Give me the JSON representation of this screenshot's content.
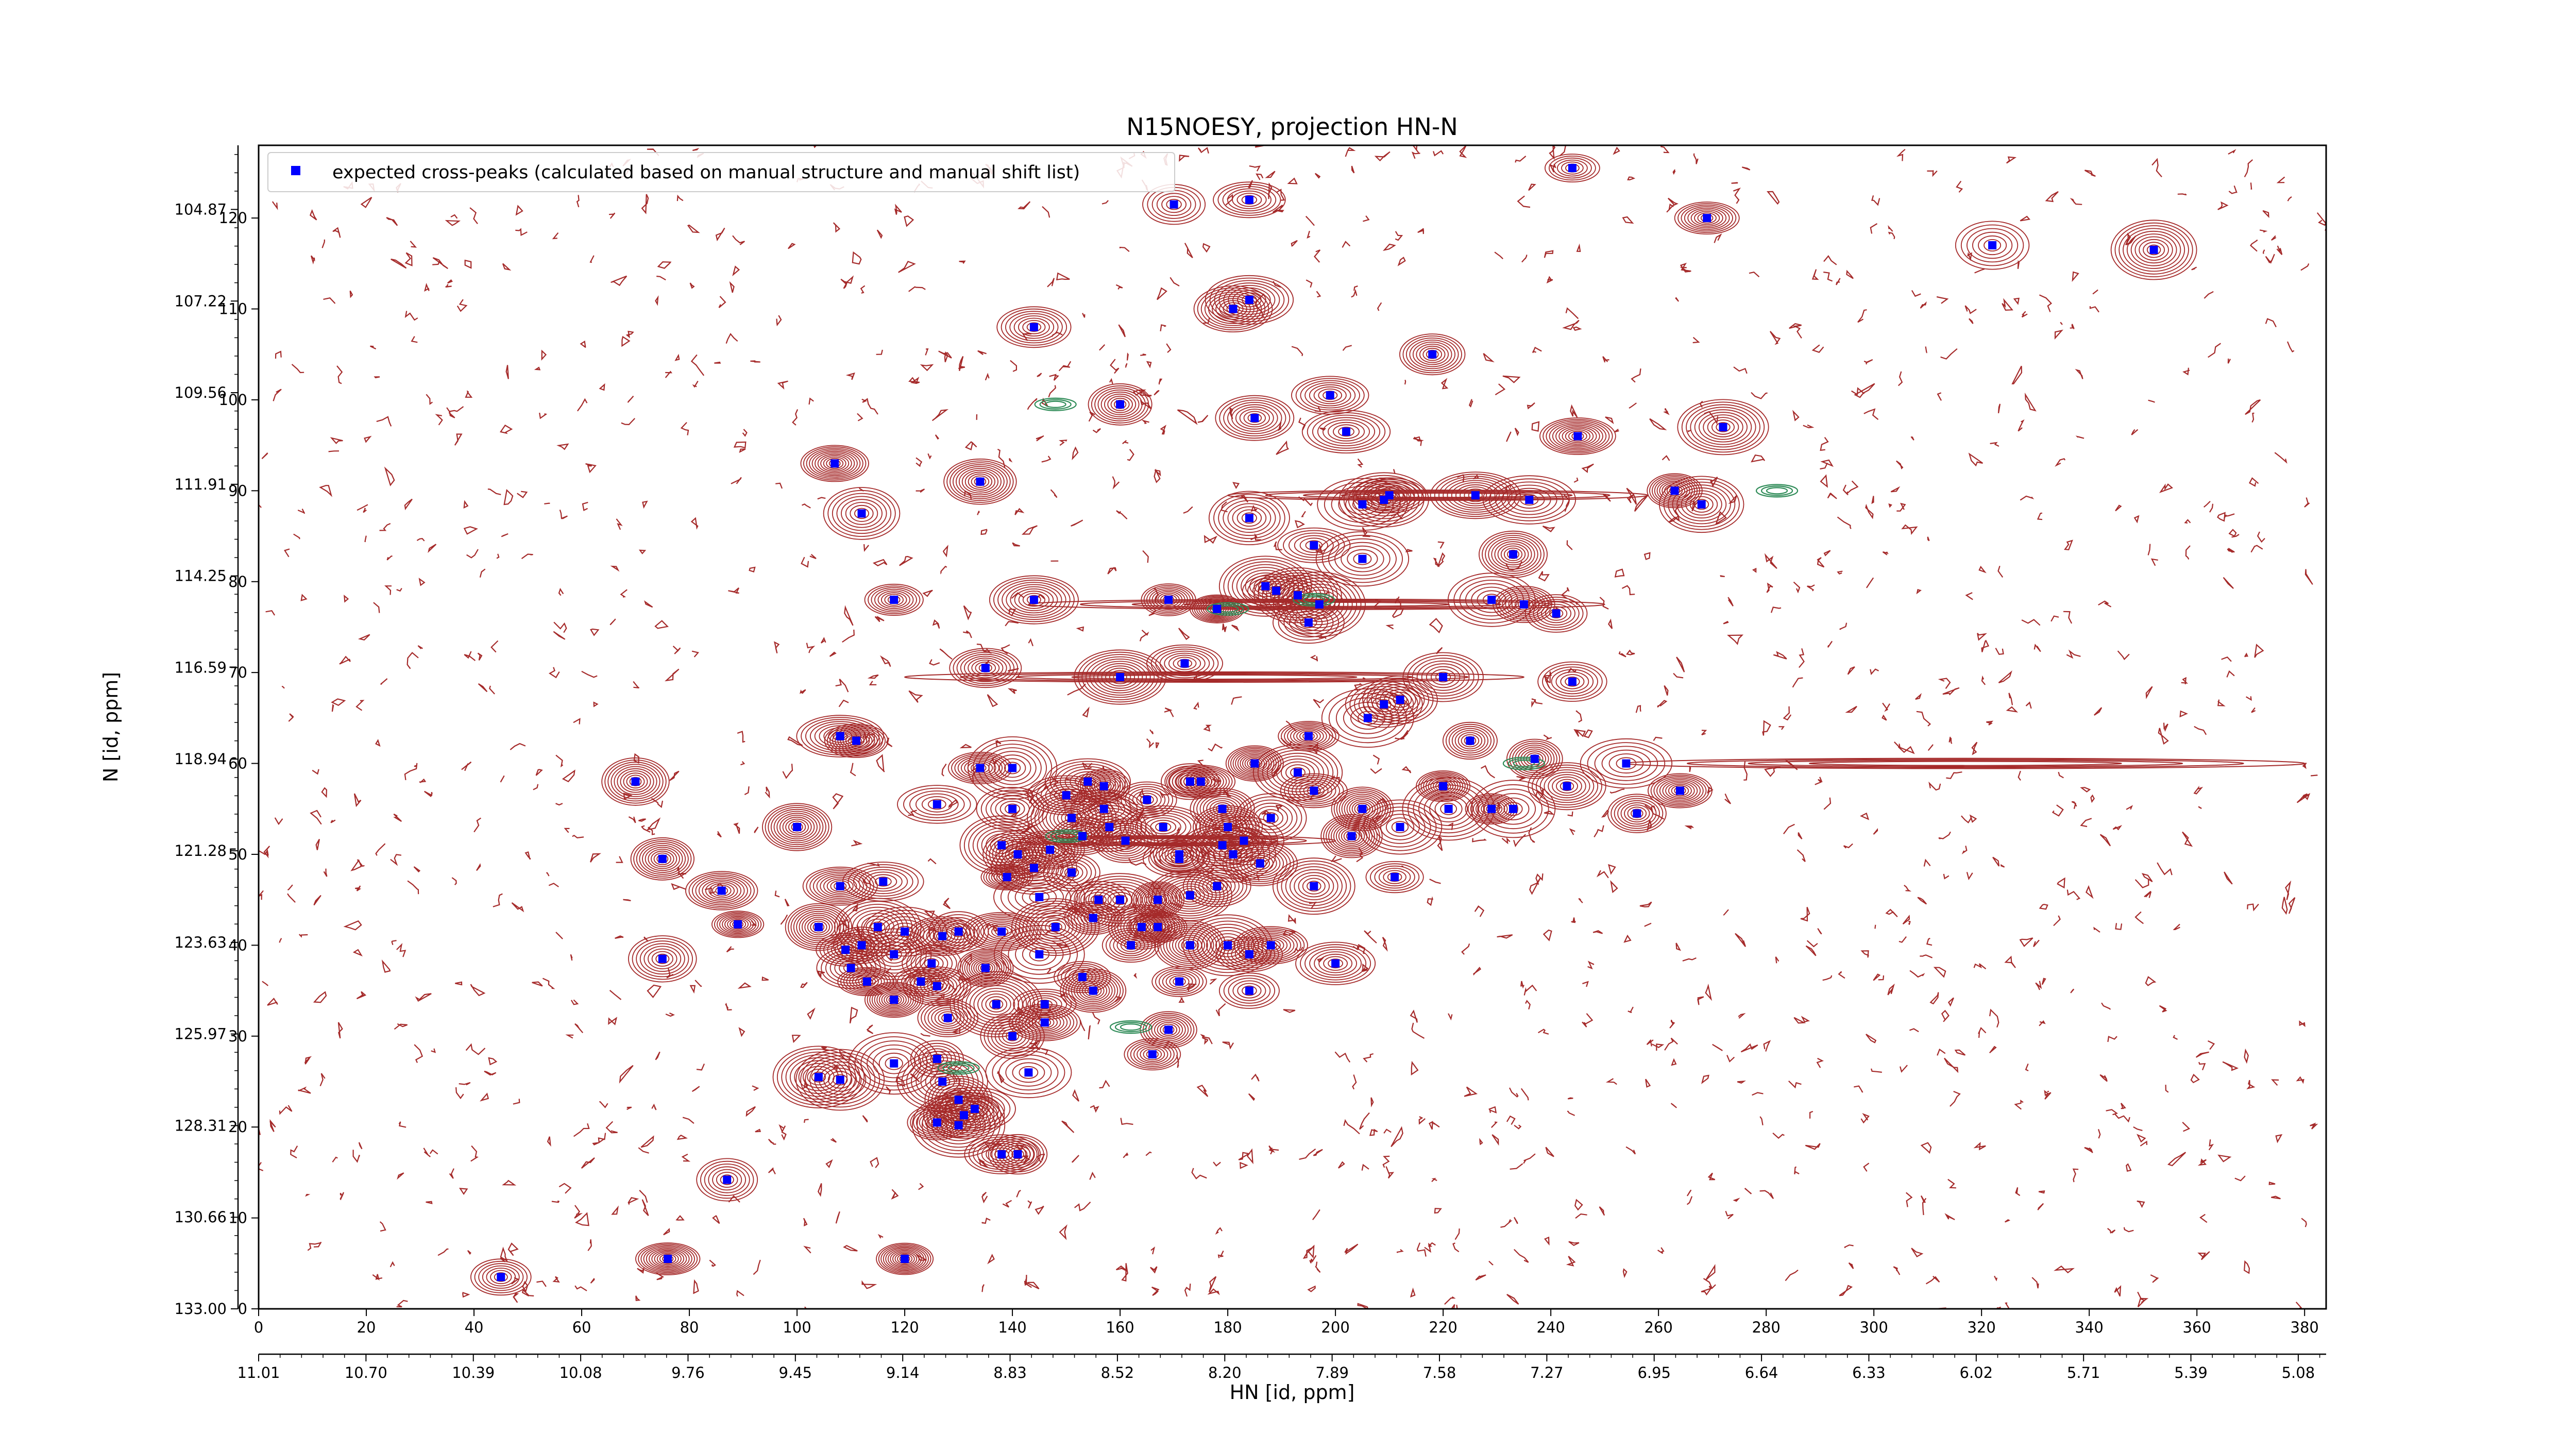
{
  "chart_data": {
    "type": "scatter",
    "title": "N15NOESY, projection HN-N",
    "xlabel": "HN [id, ppm]",
    "ylabel": "N [id, ppm]",
    "legend": {
      "placement": "top-left",
      "label": "expected cross-peaks (calculated based on manual structure and manual shift list)",
      "marker_color": "#0000ff"
    },
    "colors": {
      "positive_contours": "#a52a2a",
      "negative_contours": "#2e8b57",
      "marker": "#0000ff"
    },
    "x_index_range": [
      0,
      384
    ],
    "y_index_range": [
      0,
      128
    ],
    "x_index_ticks": [
      "0",
      "20",
      "40",
      "60",
      "80",
      "100",
      "120",
      "140",
      "160",
      "180",
      "200",
      "220",
      "240",
      "260",
      "280",
      "300",
      "320",
      "340",
      "360",
      "380"
    ],
    "y_index_ticks": [
      "0",
      "10",
      "20",
      "30",
      "40",
      "50",
      "60",
      "70",
      "80",
      "90",
      "100",
      "110",
      "120"
    ],
    "hn_ppm_ticks": [
      "11.01",
      "10.70",
      "10.39",
      "10.08",
      "9.76",
      "9.45",
      "9.14",
      "8.83",
      "8.52",
      "8.20",
      "7.89",
      "7.58",
      "7.27",
      "6.95",
      "6.64",
      "6.33",
      "6.02",
      "5.71",
      "5.39",
      "5.08"
    ],
    "n_ppm_ticks": [
      "133.00",
      "130.66",
      "128.31",
      "125.97",
      "123.63",
      "121.28",
      "118.94",
      "116.59",
      "114.25",
      "111.91",
      "109.56",
      "107.22",
      "104.87"
    ],
    "points_index": [
      [
        45,
        3.5
      ],
      [
        76,
        5.5
      ],
      [
        120,
        5.5
      ],
      [
        87,
        14.2
      ],
      [
        138,
        17
      ],
      [
        141,
        17
      ],
      [
        130,
        20.2
      ],
      [
        126,
        20.5
      ],
      [
        131,
        21.3
      ],
      [
        143,
        26
      ],
      [
        104,
        25.5
      ],
      [
        108,
        25.2
      ],
      [
        118,
        27
      ],
      [
        126,
        27.5
      ],
      [
        130,
        23
      ],
      [
        133,
        22
      ],
      [
        127,
        25
      ],
      [
        166,
        28
      ],
      [
        140,
        30
      ],
      [
        146,
        31.5
      ],
      [
        169,
        30.7
      ],
      [
        155,
        35
      ],
      [
        171,
        36
      ],
      [
        184,
        35
      ],
      [
        146,
        33.5
      ],
      [
        137,
        33.5
      ],
      [
        153,
        36.5
      ],
      [
        113,
        36
      ],
      [
        123,
        36
      ],
      [
        118,
        34
      ],
      [
        128,
        32
      ],
      [
        112,
        40
      ],
      [
        118,
        39
      ],
      [
        125,
        38
      ],
      [
        126,
        35.5
      ],
      [
        135,
        37.5
      ],
      [
        109,
        39.5
      ],
      [
        110,
        37.5
      ],
      [
        104,
        42
      ],
      [
        115,
        42
      ],
      [
        120,
        41.5
      ],
      [
        127,
        41
      ],
      [
        130,
        41.5
      ],
      [
        138,
        41.5
      ],
      [
        145,
        39
      ],
      [
        148,
        42
      ],
      [
        155,
        43
      ],
      [
        162,
        40
      ],
      [
        164,
        42
      ],
      [
        167,
        42
      ],
      [
        173,
        40
      ],
      [
        184,
        39
      ],
      [
        188,
        40
      ],
      [
        180,
        40
      ],
      [
        200,
        38
      ],
      [
        75,
        38.5
      ],
      [
        89,
        42.3
      ],
      [
        139,
        47.5
      ],
      [
        145,
        45.3
      ],
      [
        156,
        45
      ],
      [
        160,
        45
      ],
      [
        167,
        45
      ],
      [
        173,
        45.5
      ],
      [
        178,
        46.5
      ],
      [
        196,
        46.5
      ],
      [
        211,
        47.5
      ],
      [
        86,
        46
      ],
      [
        108,
        46.5
      ],
      [
        116,
        47
      ],
      [
        100,
        53
      ],
      [
        75,
        49.5
      ],
      [
        141,
        50
      ],
      [
        144,
        48.5
      ],
      [
        147,
        50.5
      ],
      [
        151,
        48
      ],
      [
        153,
        52
      ],
      [
        161,
        51.5
      ],
      [
        171,
        50
      ],
      [
        179,
        51
      ],
      [
        181,
        50
      ],
      [
        186,
        49
      ],
      [
        183,
        51.5
      ],
      [
        180,
        53
      ],
      [
        203,
        52
      ],
      [
        212,
        53
      ],
      [
        171,
        49.5
      ],
      [
        168,
        53
      ],
      [
        179,
        55
      ],
      [
        158,
        53
      ],
      [
        157,
        55
      ],
      [
        165,
        56
      ],
      [
        188,
        54
      ],
      [
        205,
        55
      ],
      [
        221,
        55
      ],
      [
        229,
        55
      ],
      [
        233,
        55
      ],
      [
        220,
        57.5
      ],
      [
        196,
        57
      ],
      [
        193,
        59
      ],
      [
        185,
        60
      ],
      [
        175,
        58
      ],
      [
        173,
        58
      ],
      [
        154,
        58
      ],
      [
        140,
        59.5
      ],
      [
        134,
        59.5
      ],
      [
        126,
        55.5
      ],
      [
        150,
        56.5
      ],
      [
        157,
        57.5
      ],
      [
        151,
        54
      ],
      [
        138,
        51
      ],
      [
        140,
        55
      ],
      [
        70,
        58
      ],
      [
        108,
        63
      ],
      [
        111,
        62.5
      ],
      [
        135,
        70.5
      ],
      [
        243,
        57.5
      ],
      [
        237,
        60.5
      ],
      [
        225,
        62.5
      ],
      [
        195,
        63
      ],
      [
        209,
        66.5
      ],
      [
        206,
        65
      ],
      [
        212,
        67
      ],
      [
        220,
        69.5
      ],
      [
        244,
        69
      ],
      [
        254,
        60
      ],
      [
        256,
        54.5
      ],
      [
        264,
        57
      ],
      [
        197,
        77.5
      ],
      [
        193,
        78.5
      ],
      [
        195,
        75.5
      ],
      [
        187,
        79.5
      ],
      [
        189,
        79
      ],
      [
        178,
        77
      ],
      [
        169,
        78
      ],
      [
        144,
        78
      ],
      [
        118,
        78
      ],
      [
        160,
        69.5
      ],
      [
        172,
        71
      ],
      [
        229,
        78
      ],
      [
        235,
        77.5
      ],
      [
        241,
        76.5
      ],
      [
        233,
        83
      ],
      [
        205,
        82.5
      ],
      [
        196,
        84
      ],
      [
        184,
        87
      ],
      [
        209,
        89
      ],
      [
        205,
        88.5
      ],
      [
        210,
        89.5
      ],
      [
        226,
        89.5
      ],
      [
        236,
        89
      ],
      [
        263,
        90
      ],
      [
        268,
        88.5
      ],
      [
        112,
        87.5
      ],
      [
        107,
        93
      ],
      [
        134,
        91
      ],
      [
        245,
        96
      ],
      [
        272,
        97
      ],
      [
        160,
        99.5
      ],
      [
        199,
        100.5
      ],
      [
        185,
        98
      ],
      [
        202,
        96.5
      ],
      [
        144,
        108
      ],
      [
        181,
        110
      ],
      [
        184,
        111
      ],
      [
        218,
        105
      ],
      [
        170,
        121.5
      ],
      [
        184,
        122
      ],
      [
        244,
        125.5
      ],
      [
        322,
        117
      ],
      [
        352,
        116.5
      ],
      [
        269,
        120
      ]
    ]
  }
}
